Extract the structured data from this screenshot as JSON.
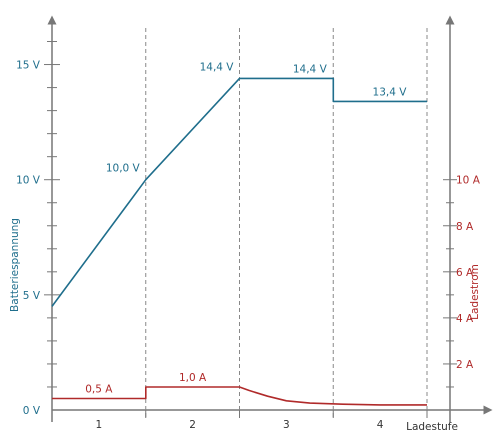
{
  "chart_data": {
    "type": "line",
    "ylabel": "Batteriespannung",
    "y2label": "Ladestrom",
    "xlabel": "Ladestufe",
    "xlim": [
      0,
      4.2
    ],
    "ylim": [
      0,
      16.5
    ],
    "y2lim": [
      0,
      16.5
    ],
    "stages": [
      "1",
      "2",
      "3",
      "4"
    ],
    "stage_boundaries": [
      1,
      2,
      3,
      4
    ],
    "yticks": [
      {
        "v": 0,
        "label": "0 V"
      },
      {
        "v": 5,
        "label": "5 V"
      },
      {
        "v": 10,
        "label": "10 V"
      },
      {
        "v": 15,
        "label": "15 V"
      }
    ],
    "y2ticks": [
      {
        "v": 2,
        "label": "2 A"
      },
      {
        "v": 4,
        "label": "4 A"
      },
      {
        "v": 6,
        "label": "6 A"
      },
      {
        "v": 8,
        "label": "8 A"
      },
      {
        "v": 10,
        "label": "10 A"
      }
    ],
    "grid": false,
    "series": [
      {
        "name": "Batteriespannung",
        "axis": "left",
        "color": "#1f6e8c",
        "points": [
          [
            0,
            4.5
          ],
          [
            1,
            10.0
          ],
          [
            2,
            14.4
          ],
          [
            3,
            14.4
          ],
          [
            3,
            13.4
          ],
          [
            4,
            13.4
          ]
        ]
      },
      {
        "name": "Ladestrom",
        "axis": "right",
        "color": "#b02a2a",
        "points": [
          [
            0,
            0.5
          ],
          [
            1,
            0.5
          ],
          [
            1,
            1.0
          ],
          [
            2,
            1.0
          ],
          [
            2.1,
            0.85
          ],
          [
            2.3,
            0.6
          ],
          [
            2.5,
            0.4
          ],
          [
            2.75,
            0.3
          ],
          [
            3.1,
            0.25
          ],
          [
            3.5,
            0.22
          ],
          [
            4,
            0.22
          ]
        ]
      }
    ],
    "annotations": [
      {
        "text": "10,0 V",
        "x": 1,
        "y": 10.0,
        "axis": "left",
        "color": "#1f6e8c",
        "pos": "above-left"
      },
      {
        "text": "14,4 V",
        "x": 2,
        "y": 14.4,
        "axis": "left",
        "color": "#1f6e8c",
        "pos": "above-left"
      },
      {
        "text": "14,4 V",
        "x": 2.75,
        "y": 14.4,
        "axis": "left",
        "color": "#1f6e8c",
        "pos": "above"
      },
      {
        "text": "13,4 V",
        "x": 3.6,
        "y": 13.4,
        "axis": "left",
        "color": "#1f6e8c",
        "pos": "above"
      },
      {
        "text": "0,5 A",
        "x": 0.5,
        "y": 0.5,
        "axis": "right",
        "color": "#b02a2a",
        "pos": "above"
      },
      {
        "text": "1,0 A",
        "x": 1.5,
        "y": 1.0,
        "axis": "right",
        "color": "#b02a2a",
        "pos": "above"
      }
    ]
  }
}
